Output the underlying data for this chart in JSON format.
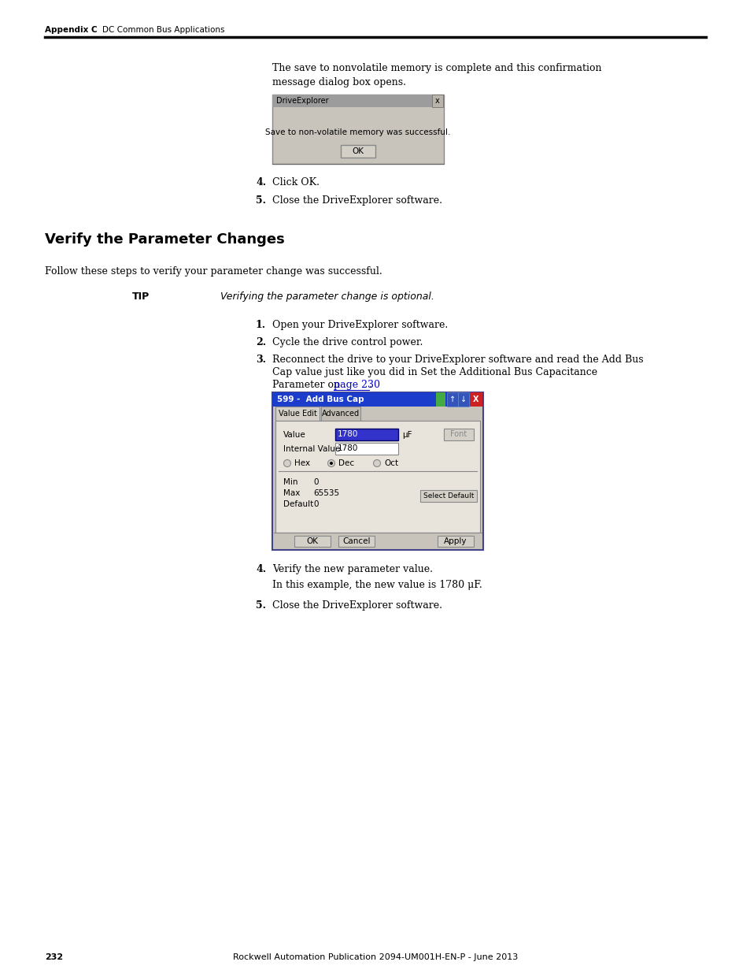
{
  "page_bg": "#ffffff",
  "header_text_left": "Appendix C",
  "header_text_right": "DC Common Bus Applications",
  "section_heading": "Verify the Parameter Changes",
  "intro_text_1": "The save to nonvolatile memory is complete and this confirmation",
  "intro_text_2": "message dialog box opens.",
  "step4_pre": "Click OK.",
  "step5_pre": "Close the DriveExplorer software.",
  "section_intro": "Follow these steps to verify your parameter change was successful.",
  "tip_label": "TIP",
  "tip_text": "Verifying the parameter change is optional.",
  "step1": "Open your DriveExplorer software.",
  "step2": "Cycle the drive control power.",
  "step3_line1": "Reconnect the drive to your DriveExplorer software and read the Add Bus",
  "step3_line2": "Cap value just like you did in Set the Additional Bus Capacitance",
  "step3_line3_pre": "Parameter on ",
  "step3_link": "page 230",
  "step3_line3_post": ".",
  "step4": "Verify the new parameter value.",
  "step4_sub": "In this example, the new value is 1780 μF.",
  "step5": "Close the DriveExplorer software.",
  "footer_page": "232",
  "footer_center": "Rockwell Automation Publication 2094-UM001H-EN-P - June 2013",
  "dialog1_title": "DriveExplorer",
  "dialog1_msg": "Save to non-volatile memory was successful.",
  "dialog1_btn": "OK",
  "dialog2_title": "599 -  Add Bus Cap",
  "dialog2_tab1": "Value Edit",
  "dialog2_tab2": "Advanced",
  "dialog2_field_value_label": "Value",
  "dialog2_field_value": "1780",
  "dialog2_field_value_unit": "μF",
  "dialog2_btn_font": "Font",
  "dialog2_field_internal_label": "Internal Value",
  "dialog2_field_internal": "1780",
  "dialog2_radio_hex": "Hex",
  "dialog2_radio_dec": "Dec",
  "dialog2_radio_oct": "Oct",
  "dialog2_min_label": "Min",
  "dialog2_min_val": "0",
  "dialog2_max_label": "Max",
  "dialog2_max_val": "65535",
  "dialog2_default_label": "Default",
  "dialog2_default_val": "0",
  "dialog2_btn_select_default": "Select Default",
  "dialog2_btn_ok": "OK",
  "dialog2_btn_cancel": "Cancel",
  "dialog2_btn_apply": "Apply",
  "link_color": "#0000cc",
  "blue_title": "#1c3dcc",
  "gray_dialog": "#c8c4bc",
  "gray_title1": "#9c9c9c"
}
